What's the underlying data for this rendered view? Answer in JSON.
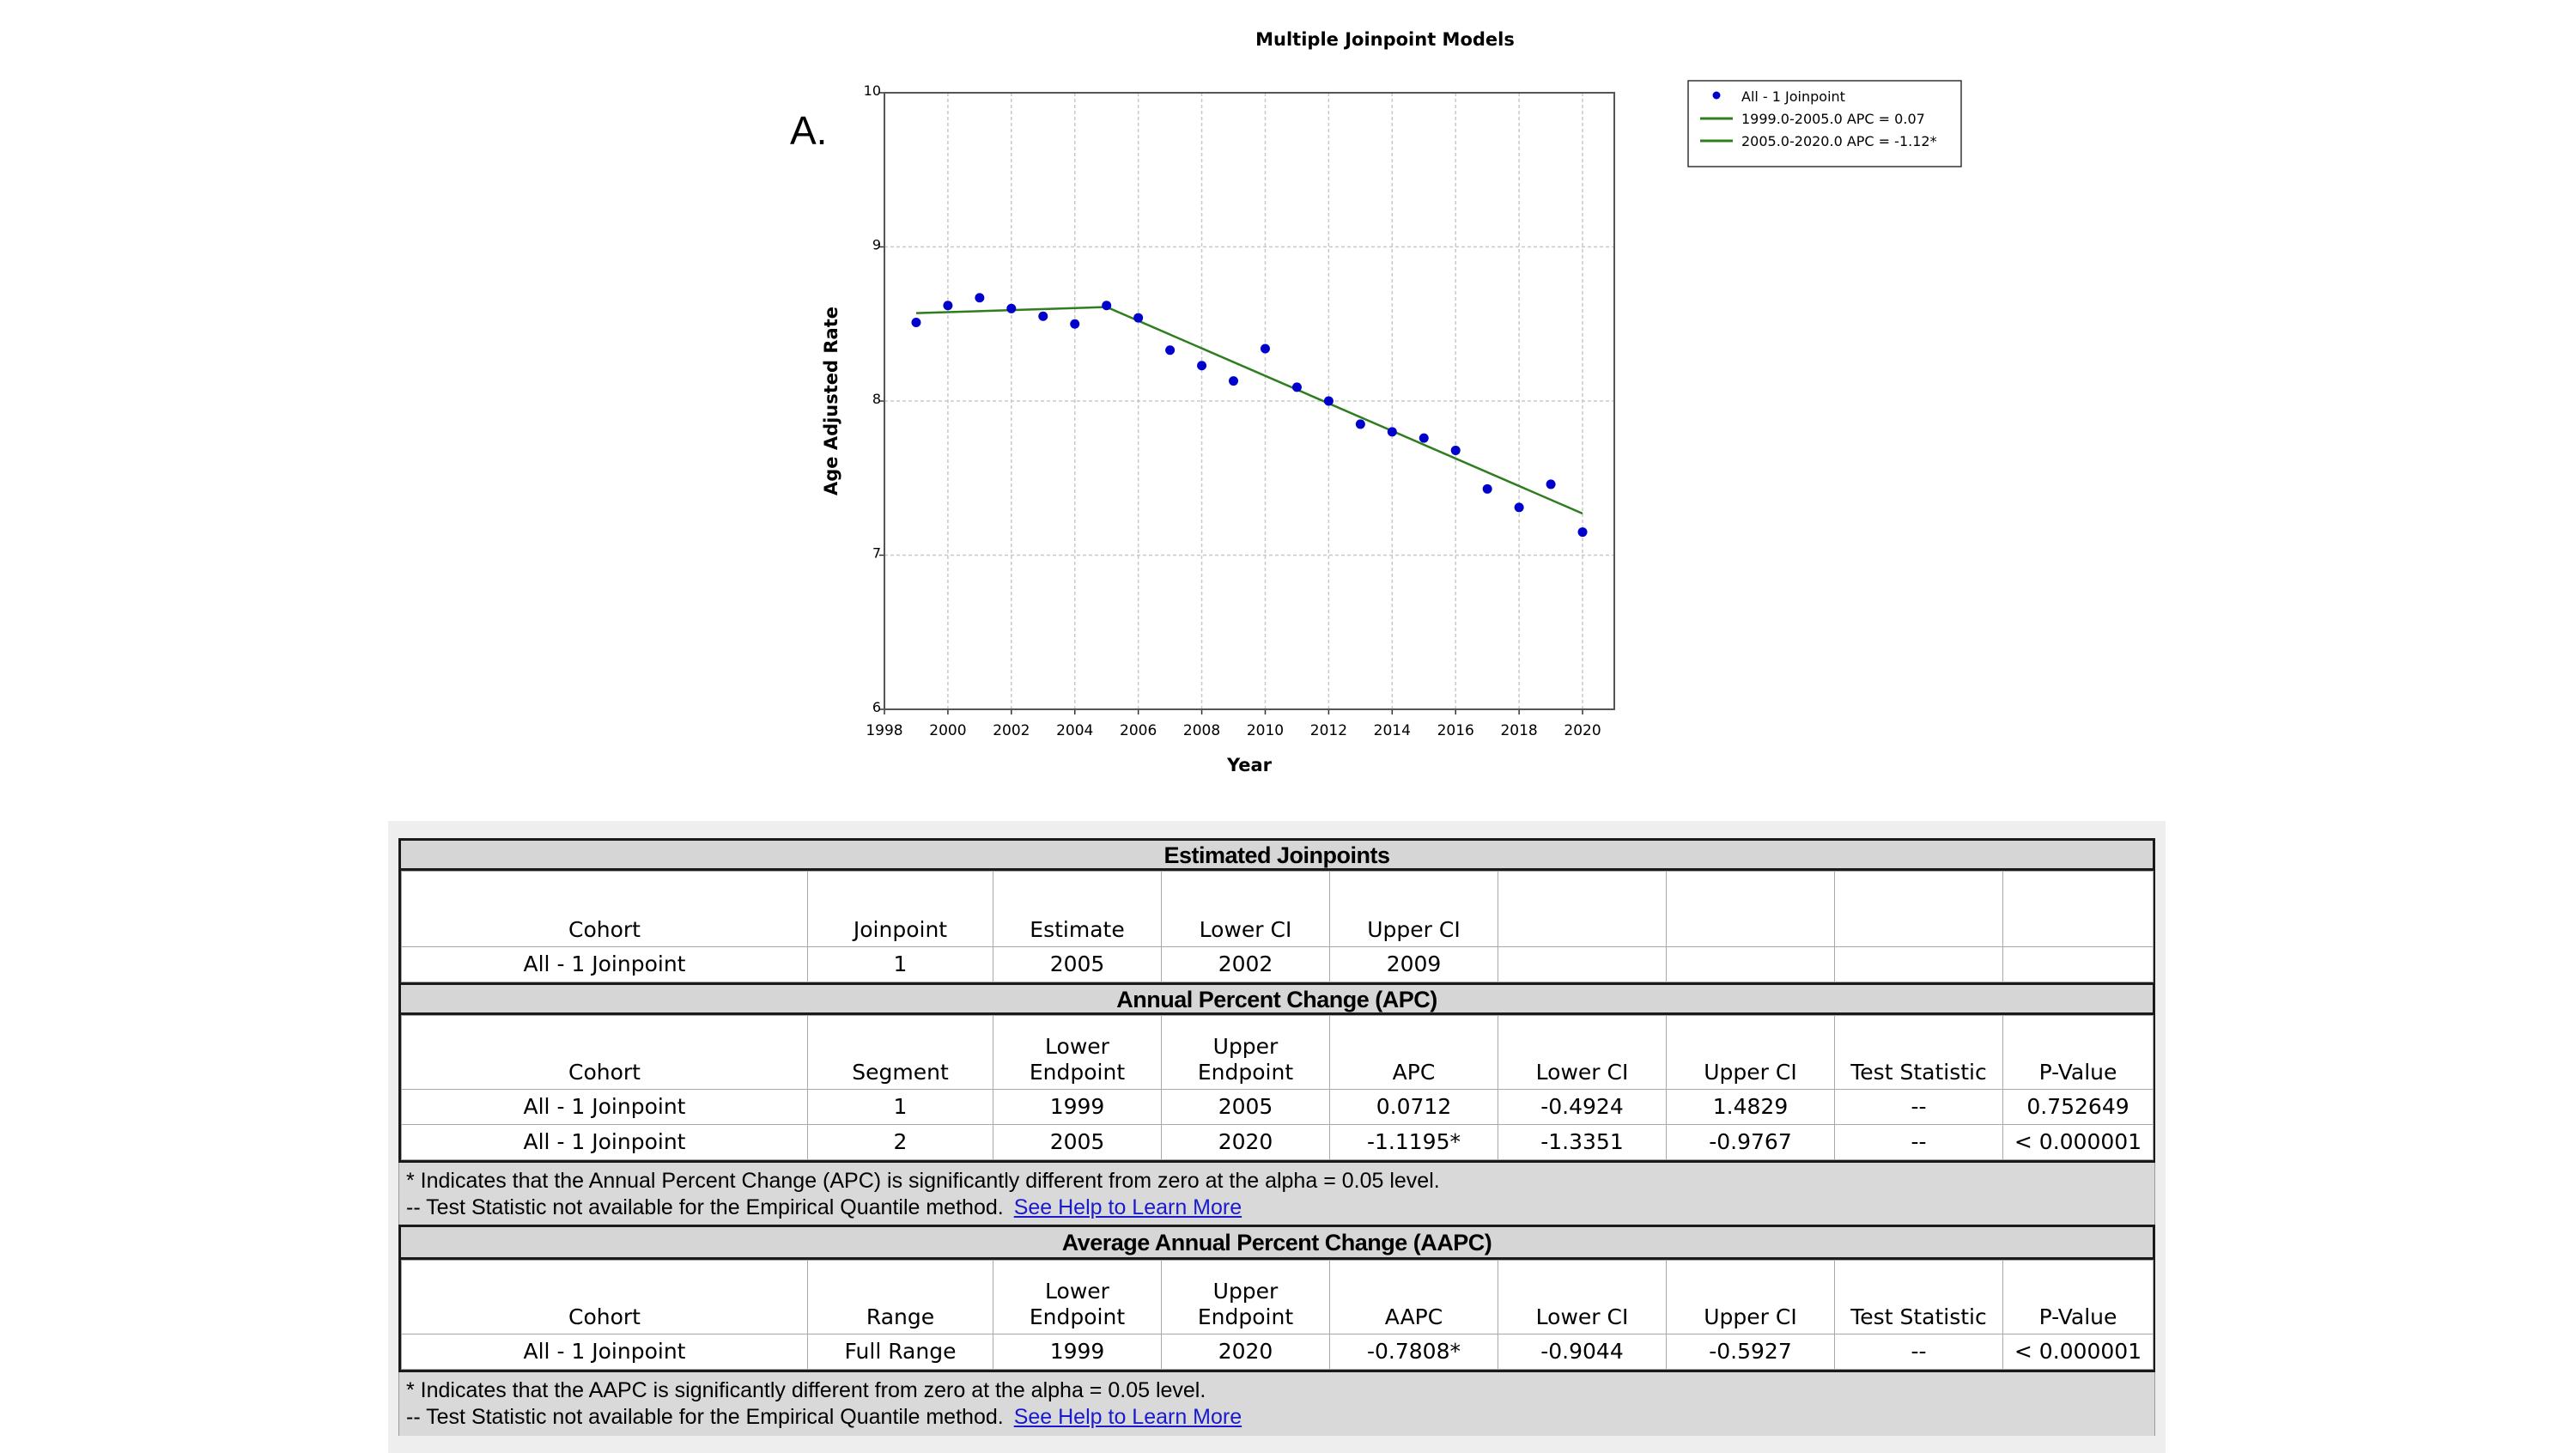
{
  "panel_letter": "A.",
  "chart_data": {
    "type": "scatter",
    "title": "Multiple Joinpoint Models",
    "xlabel": "Year",
    "ylabel": "Age Adjusted Rate",
    "xlim": [
      1998,
      2021
    ],
    "ylim": [
      6,
      10
    ],
    "x_ticks": [
      1998,
      2000,
      2002,
      2004,
      2006,
      2008,
      2010,
      2012,
      2014,
      2016,
      2018,
      2020
    ],
    "y_ticks": [
      6,
      7,
      8,
      9,
      10
    ],
    "grid": true,
    "legend_position": "top-right, outside plot",
    "points": {
      "name": "All - 1 Joinpoint",
      "color": "#0000cc",
      "x": [
        1999,
        2000,
        2001,
        2002,
        2003,
        2004,
        2005,
        2006,
        2007,
        2008,
        2009,
        2010,
        2011,
        2012,
        2013,
        2014,
        2015,
        2016,
        2017,
        2018,
        2019,
        2020
      ],
      "y": [
        8.51,
        8.62,
        8.67,
        8.6,
        8.55,
        8.5,
        8.62,
        8.54,
        8.33,
        8.23,
        8.13,
        8.34,
        8.09,
        8.0,
        7.85,
        7.8,
        7.76,
        7.68,
        7.43,
        7.31,
        7.46,
        7.15
      ]
    },
    "segments": [
      {
        "name": "1999.0-2005.0 APC  =  0.07",
        "color": "#2e7d1f",
        "x": [
          1999,
          2005
        ],
        "y": [
          8.57,
          8.61
        ]
      },
      {
        "name": "2005.0-2020.0 APC  =  -1.12*",
        "color": "#2e7d1f",
        "x": [
          2005,
          2020
        ],
        "y": [
          8.61,
          7.27
        ]
      }
    ]
  },
  "tables": {
    "joinpoints": {
      "title": "Estimated Joinpoints",
      "headers": [
        "Cohort",
        "Joinpoint",
        "Estimate",
        "Lower CI",
        "Upper CI",
        "",
        "",
        "",
        ""
      ],
      "rows": [
        [
          "All - 1 Joinpoint",
          "1",
          "2005",
          "2002",
          "2009",
          "",
          "",
          "",
          ""
        ]
      ]
    },
    "apc": {
      "title": "Annual Percent Change (APC)",
      "headers": [
        "Cohort",
        "Segment",
        "Lower\nEndpoint",
        "Upper\nEndpoint",
        "APC",
        "Lower CI",
        "Upper CI",
        "Test Statistic",
        "P-Value"
      ],
      "rows": [
        [
          "All - 1 Joinpoint",
          "1",
          "1999",
          "2005",
          "0.0712",
          "-0.4924",
          "1.4829",
          "--",
          "0.752649"
        ],
        [
          "All - 1 Joinpoint",
          "2",
          "2005",
          "2020",
          "-1.1195*",
          "-1.3351",
          "-0.9767",
          "--",
          "< 0.000001"
        ]
      ],
      "note_line1": "* Indicates that the Annual Percent Change (APC) is significantly different from zero at the alpha = 0.05 level.",
      "note_line2": " -- Test Statistic not available for the Empirical Quantile method.",
      "note_link": "See Help to Learn More"
    },
    "aapc": {
      "title": "Average Annual Percent Change (AAPC)",
      "headers": [
        "Cohort",
        "Range",
        "Lower\nEndpoint",
        "Upper\nEndpoint",
        "AAPC",
        "Lower CI",
        "Upper CI",
        "Test Statistic",
        "P-Value"
      ],
      "rows": [
        [
          "All - 1 Joinpoint",
          "Full Range",
          "1999",
          "2020",
          "-0.7808*",
          "-0.9044",
          "-0.5927",
          "--",
          "< 0.000001"
        ]
      ],
      "note_line1": "* Indicates that the AAPC is significantly different from zero at the alpha = 0.05 level.",
      "note_line2": "-- Test Statistic not available for the Empirical Quantile method.",
      "note_link": "See Help to Learn More"
    }
  }
}
